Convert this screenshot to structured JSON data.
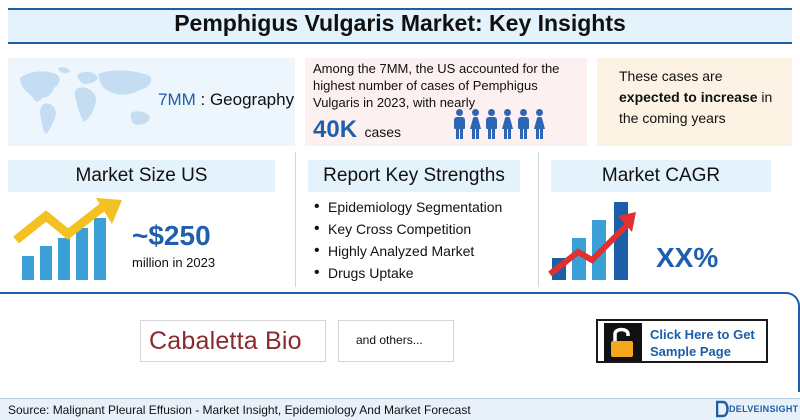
{
  "title": "Pemphigus Vulgaris Market: Key Insights",
  "geography": {
    "highlight": "7MM",
    "label": " : Geography",
    "icon": "world-map-icon"
  },
  "cases": {
    "text": "Among the 7MM, the US accounted for the highest number of cases of Pemphigus Vulgaris in 2023, with nearly",
    "number": "40K",
    "unit": "cases",
    "icon": "people-icon"
  },
  "forecast": {
    "prefix": "These cases are ",
    "emphasis": "expected to increase",
    "suffix": " in the coming years"
  },
  "market_size": {
    "header": "Market Size US",
    "value": "~$250",
    "sub": "million in 2023",
    "icon": "growth-chart-icon"
  },
  "strengths": {
    "header": "Report Key Strengths",
    "items": [
      "Epidemiology Segmentation",
      "Key Cross Competition",
      "Highly Analyzed Market",
      "Drugs Uptake"
    ]
  },
  "cagr": {
    "header": "Market CAGR",
    "value": "XX%",
    "icon": "bar-growth-icon"
  },
  "companies": {
    "logo": "Cabaletta Bio",
    "others": "and others..."
  },
  "cta": {
    "line1": "Click Here to Get",
    "line2": "Sample Page",
    "icon": "unlock-icon"
  },
  "footer": {
    "source": "Source: Malignant Pleural Effusion - Market Insight, Epidemiology And Market Forecast",
    "brand": "DELVEINSIGHT"
  },
  "colors": {
    "accent_blue": "#1d5ea8",
    "number_blue": "#1f5fae",
    "arrow_red": "#e0312f",
    "lock_orange": "#f4a81d",
    "arrow_yellow": "#f3c121",
    "bar_teal": "#3aa0d6"
  }
}
